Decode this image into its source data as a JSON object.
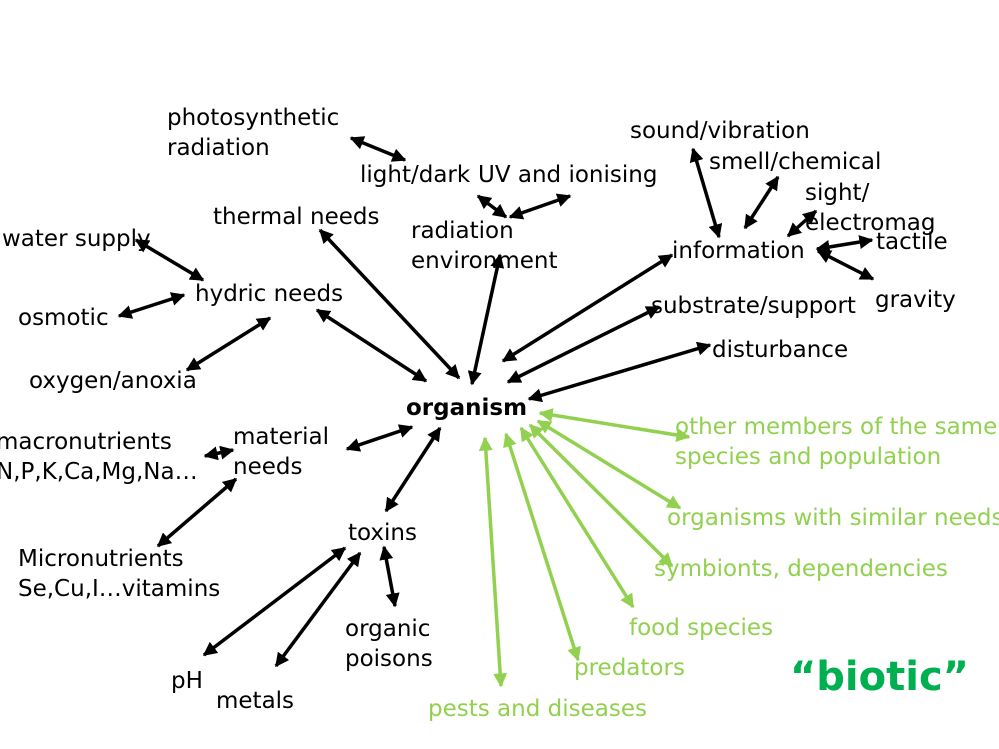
{
  "center": "organism",
  "nodes": {
    "photosynthetic": "photosynthetic\nradiation",
    "lightdark": "light/dark",
    "uv": "UV and ionising",
    "radiation_env": "radiation\nenvironment",
    "thermal": "thermal needs",
    "water_supply": "water supply",
    "hydric": "hydric needs",
    "osmotic": "osmotic",
    "oxygen": "oxygen/anoxia",
    "macronutrients": "macronutrients\nN,P,K,Ca,Mg,Na…",
    "material": "material\nneeds",
    "micronutrients": "Micronutrients\nSe,Cu,I…vitamins",
    "toxins": "toxins",
    "ph": "pH",
    "metals": "metals",
    "organic_poisons": "organic\npoisons",
    "sound": "sound/vibration",
    "smell": "smell/chemical",
    "sight": "sight/\nelectromag",
    "information": "information",
    "tactile": "tactile",
    "gravity": "gravity",
    "substrate": "substrate/support",
    "disturbance": "disturbance"
  },
  "biotic_nodes": {
    "same_species": "other members of the same\nspecies and population",
    "similar_needs": "organisms with similar needs",
    "symbionts": "symbionts, dependencies",
    "food": "food species",
    "predators": "predators",
    "pests": "pests and diseases"
  },
  "biotic_label": "“biotic”",
  "colors": {
    "text": "#000000",
    "biotic_links": "#92d050",
    "biotic_heading": "#00b050"
  }
}
